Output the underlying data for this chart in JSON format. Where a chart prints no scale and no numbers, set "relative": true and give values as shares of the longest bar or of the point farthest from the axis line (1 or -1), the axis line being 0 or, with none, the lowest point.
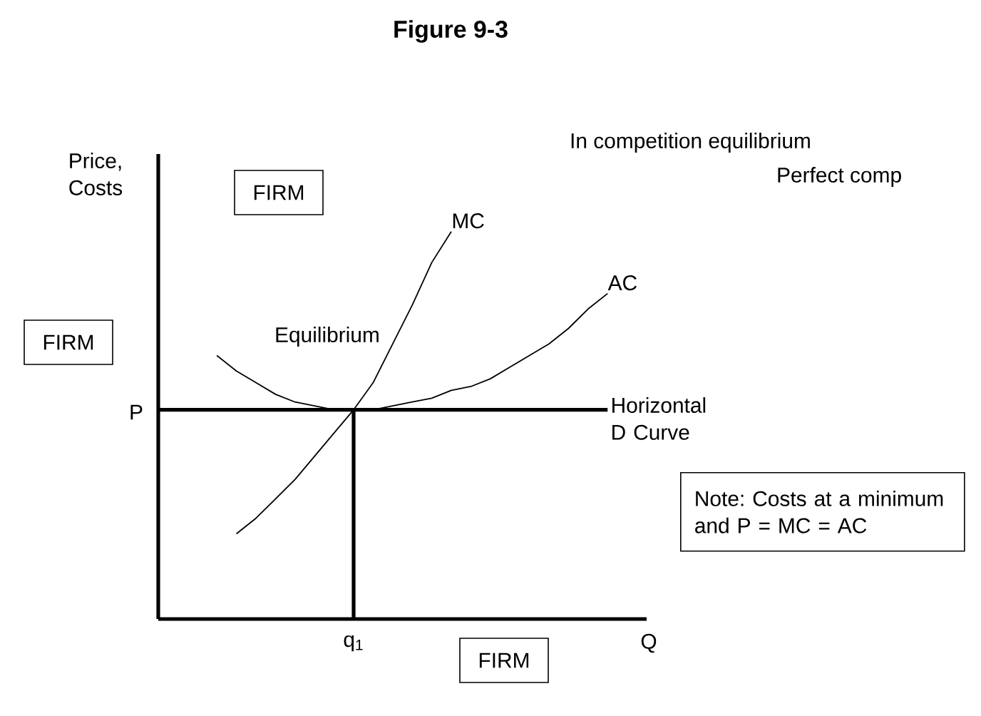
{
  "chart_data": {
    "type": "line",
    "title": "Figure 9-3",
    "xlabel": "Q",
    "ylabel": "Price, Costs",
    "relative": true,
    "categories": [
      null,
      null,
      null,
      null,
      null,
      null,
      null,
      null,
      null,
      null,
      null,
      null,
      null,
      null,
      null,
      null,
      null,
      null,
      null,
      null,
      null,
      null,
      null,
      null
    ],
    "series": [
      {
        "name": "MC",
        "color": "#000000",
        "values": [
          null,
          null,
          null,
          null,
          0.22,
          0.26,
          0.31,
          0.36,
          0.42,
          0.48,
          0.54,
          0.61,
          0.71,
          0.81,
          0.92,
          1,
          null,
          null,
          null,
          null,
          null,
          null,
          null,
          null
        ]
      },
      {
        "name": "AC",
        "color": "#000000",
        "values": [
          null,
          null,
          null,
          0.68,
          0.64,
          0.61,
          0.58,
          0.56,
          0.55,
          0.54,
          0.54,
          0.54,
          0.55,
          0.56,
          0.57,
          0.59,
          0.6,
          0.62,
          0.65,
          0.68,
          0.71,
          0.75,
          0.8,
          0.84
        ]
      }
    ],
    "ref_lines": [
      {
        "axis": "y",
        "value": 0.54,
        "label": "Horizontal D Curve",
        "color": "#000000"
      }
    ],
    "annotations": [
      "In competition equilibrium",
      "Perfect comp",
      "FIRM",
      "FIRM",
      "Equilibrium",
      "Note: Costs at a minimum and P = MC = AC",
      "FIRM",
      "P",
      "q$_{1}$"
    ]
  }
}
